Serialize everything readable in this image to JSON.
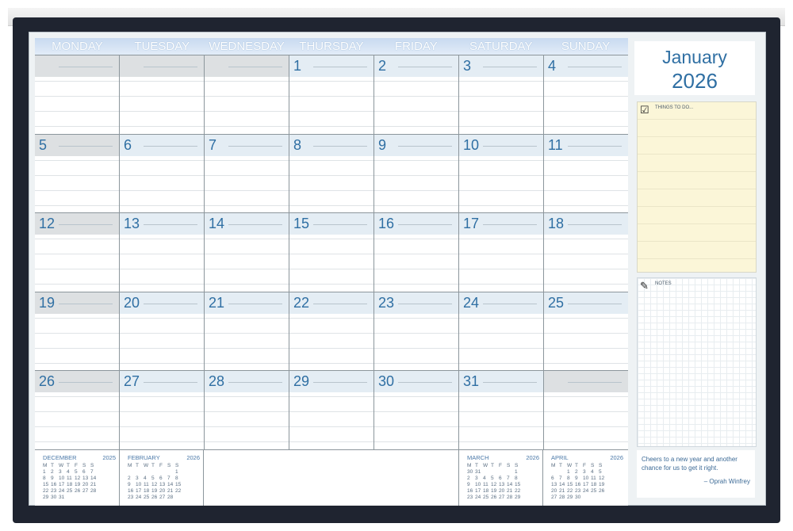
{
  "weekdays": [
    "MONDAY",
    "TUESDAY",
    "WEDNESDAY",
    "THURSDAY",
    "FRIDAY",
    "SATURDAY",
    "SUNDAY"
  ],
  "weeks": [
    [
      "",
      "",
      "",
      "1",
      "2",
      "3",
      "4"
    ],
    [
      "5",
      "6",
      "7",
      "8",
      "9",
      "10",
      "11"
    ],
    [
      "12",
      "13",
      "14",
      "15",
      "16",
      "17",
      "18"
    ],
    [
      "19",
      "20",
      "21",
      "22",
      "23",
      "24",
      "25"
    ],
    [
      "26",
      "27",
      "28",
      "29",
      "30",
      "31",
      ""
    ]
  ],
  "month": "January",
  "year": "2026",
  "todo_label": "THINGS TO DO...",
  "notes_label": "NOTES",
  "quote": {
    "text": "Cheers to a new year and another chance for us to get it right.",
    "author": "– Oprah Winfrey"
  },
  "mini_header": [
    "M",
    "T",
    "W",
    "T",
    "F",
    "S",
    "S"
  ],
  "minis": [
    {
      "month": "DECEMBER",
      "year": "2025",
      "rows": [
        [
          "1",
          "2",
          "3",
          "4",
          "5",
          "6",
          "7"
        ],
        [
          "8",
          "9",
          "10",
          "11",
          "12",
          "13",
          "14"
        ],
        [
          "15",
          "16",
          "17",
          "18",
          "19",
          "20",
          "21"
        ],
        [
          "22",
          "23",
          "24",
          "25",
          "26",
          "27",
          "28"
        ],
        [
          "29",
          "30",
          "31",
          "",
          "",
          "",
          ""
        ]
      ]
    },
    {
      "month": "FEBRUARY",
      "year": "2026",
      "rows": [
        [
          "",
          "",
          "",
          "",
          "",
          "",
          "1"
        ],
        [
          "2",
          "3",
          "4",
          "5",
          "6",
          "7",
          "8"
        ],
        [
          "9",
          "10",
          "11",
          "12",
          "13",
          "14",
          "15"
        ],
        [
          "16",
          "17",
          "18",
          "19",
          "20",
          "21",
          "22"
        ],
        [
          "23",
          "24",
          "25",
          "26",
          "27",
          "28",
          ""
        ]
      ]
    },
    {
      "month": "MARCH",
      "year": "2026",
      "rows": [
        [
          "30",
          "31",
          "",
          "",
          "",
          "",
          "1"
        ],
        [
          "2",
          "3",
          "4",
          "5",
          "6",
          "7",
          "8"
        ],
        [
          "9",
          "10",
          "11",
          "12",
          "13",
          "14",
          "15"
        ],
        [
          "16",
          "17",
          "18",
          "19",
          "20",
          "21",
          "22"
        ],
        [
          "23",
          "24",
          "25",
          "26",
          "27",
          "28",
          "29"
        ]
      ]
    },
    {
      "month": "APRIL",
      "year": "2026",
      "rows": [
        [
          "",
          "",
          "1",
          "2",
          "3",
          "4",
          "5"
        ],
        [
          "6",
          "7",
          "8",
          "9",
          "10",
          "11",
          "12"
        ],
        [
          "13",
          "14",
          "15",
          "16",
          "17",
          "18",
          "19"
        ],
        [
          "20",
          "21",
          "22",
          "23",
          "24",
          "25",
          "26"
        ],
        [
          "27",
          "28",
          "29",
          "30",
          "",
          "",
          ""
        ]
      ]
    }
  ],
  "colors": {
    "accent": "#2f6fa3",
    "header": "#c8daf0",
    "todo": "#fbf6d8"
  },
  "icons": {
    "todo": "checkbox-checked-icon",
    "notes": "pencil-icon"
  }
}
